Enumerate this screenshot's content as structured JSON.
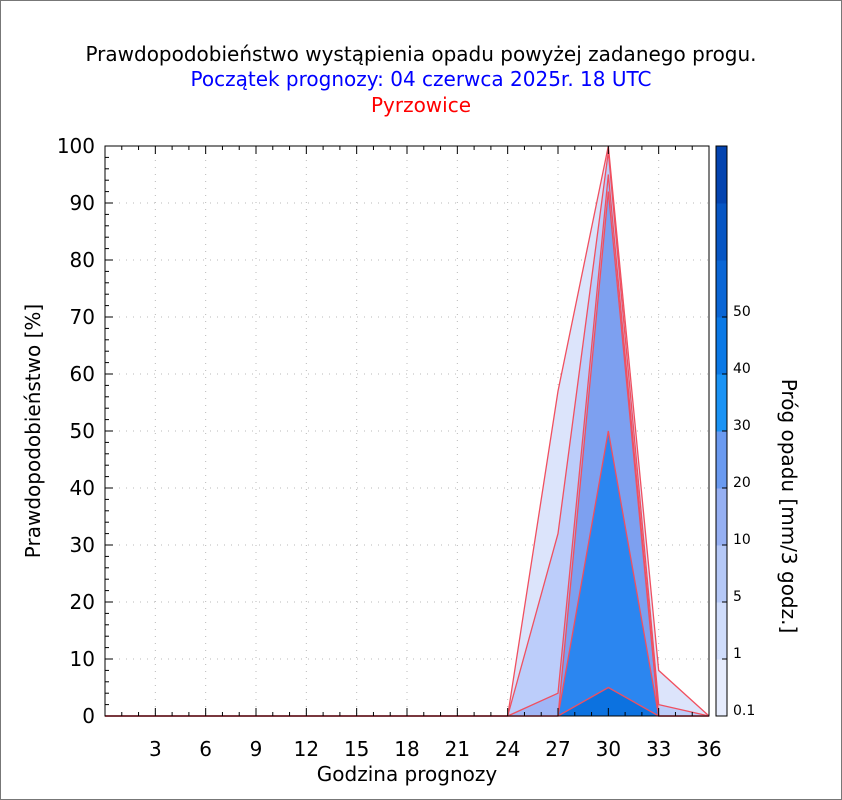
{
  "header": {
    "title": "Prawdopodobieństwo wystąpienia opadu powyżej zadanego progu.",
    "subtitle": "Początek prognozy: 04 czerwca 2025r. 18 UTC",
    "location": "Pyrzowice"
  },
  "chart_data": {
    "type": "area",
    "title": "Prawdopodobieństwo wystąpienia opadu powyżej zadanego progu.",
    "xlabel": "Godzina prognozy",
    "ylabel": "Prawdopodobieństwo [%]",
    "xlim": [
      0,
      36
    ],
    "ylim": [
      0,
      100
    ],
    "x_ticks": [
      3,
      6,
      9,
      12,
      15,
      18,
      21,
      24,
      27,
      30,
      33,
      36
    ],
    "y_ticks": [
      0,
      10,
      20,
      30,
      40,
      50,
      60,
      70,
      80,
      90,
      100
    ],
    "grid": true,
    "x": [
      0,
      3,
      6,
      9,
      12,
      15,
      18,
      21,
      24,
      27,
      30,
      33,
      36
    ],
    "series": [
      {
        "name": "0.1",
        "color": "#dce4fb",
        "values": [
          0,
          0,
          0,
          0,
          0,
          0,
          0,
          0,
          0,
          57,
          100,
          8,
          0
        ]
      },
      {
        "name": "1",
        "color": "#bccdfa",
        "values": [
          0,
          0,
          0,
          0,
          0,
          0,
          0,
          0,
          0,
          32,
          99,
          2,
          0
        ]
      },
      {
        "name": "5",
        "color": "#a0b6f6",
        "values": [
          0,
          0,
          0,
          0,
          0,
          0,
          0,
          0,
          0,
          4,
          95,
          0,
          0
        ]
      },
      {
        "name": "10",
        "color": "#7da0f0",
        "values": [
          0,
          0,
          0,
          0,
          0,
          0,
          0,
          0,
          0,
          0,
          92,
          0,
          0
        ]
      },
      {
        "name": "20",
        "color": "#2b86f0",
        "values": [
          0,
          0,
          0,
          0,
          0,
          0,
          0,
          0,
          0,
          0,
          50,
          0,
          0
        ]
      },
      {
        "name": "30",
        "color": "#0c72e0",
        "values": [
          0,
          0,
          0,
          0,
          0,
          0,
          0,
          0,
          0,
          0,
          5,
          0,
          0
        ]
      }
    ],
    "colorbar": {
      "label": "Próg opadu [mm/3 godz.]",
      "ticks": [
        "0.1",
        "1",
        "5",
        "10",
        "20",
        "30",
        "40",
        "50"
      ],
      "colors": [
        "#e6ecfd",
        "#cfdcfb",
        "#b5c8f7",
        "#96b0f3",
        "#6a9af0",
        "#1a93f5",
        "#0b79e6",
        "#0a66d5",
        "#0756c4",
        "#0444b0"
      ]
    }
  }
}
